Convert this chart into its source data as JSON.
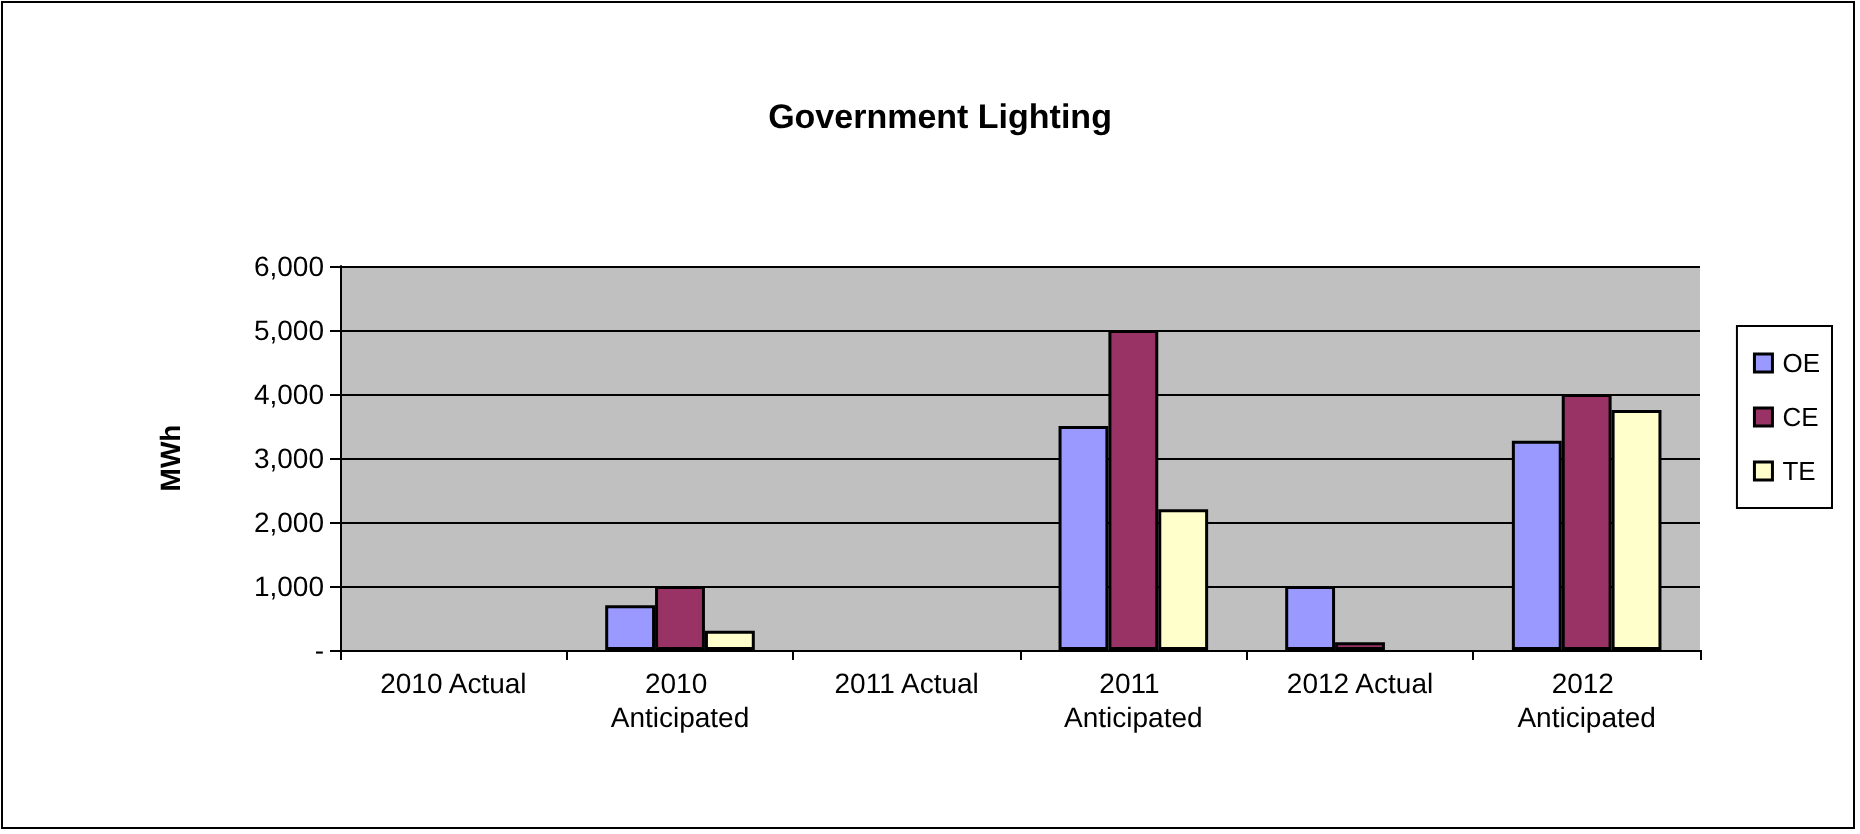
{
  "chart_data": {
    "type": "bar",
    "title": "Government Lighting",
    "ylabel": "MWh",
    "categories": [
      "2010 Actual",
      "2010 Anticipated",
      "2011 Actual",
      "2011 Anticipated",
      "2012 Actual",
      "2012 Anticipated"
    ],
    "series": [
      {
        "name": "OE",
        "color": "#9999ff",
        "values": [
          null,
          700,
          null,
          3500,
          1000,
          3270
        ]
      },
      {
        "name": "CE",
        "color": "#993366",
        "values": [
          null,
          1000,
          null,
          5000,
          120,
          4000
        ]
      },
      {
        "name": "TE",
        "color": "#ffffcc",
        "values": [
          null,
          300,
          null,
          2200,
          null,
          3750
        ]
      }
    ],
    "ylim": [
      0,
      6000
    ],
    "yticks": [
      {
        "value": 0,
        "label": "-"
      },
      {
        "value": 1000,
        "label": "1,000"
      },
      {
        "value": 2000,
        "label": "2,000"
      },
      {
        "value": 3000,
        "label": "3,000"
      },
      {
        "value": 4000,
        "label": "4,000"
      },
      {
        "value": 5000,
        "label": "5,000"
      },
      {
        "value": 6000,
        "label": "6,000"
      }
    ],
    "grid": "y",
    "legend": "right"
  }
}
